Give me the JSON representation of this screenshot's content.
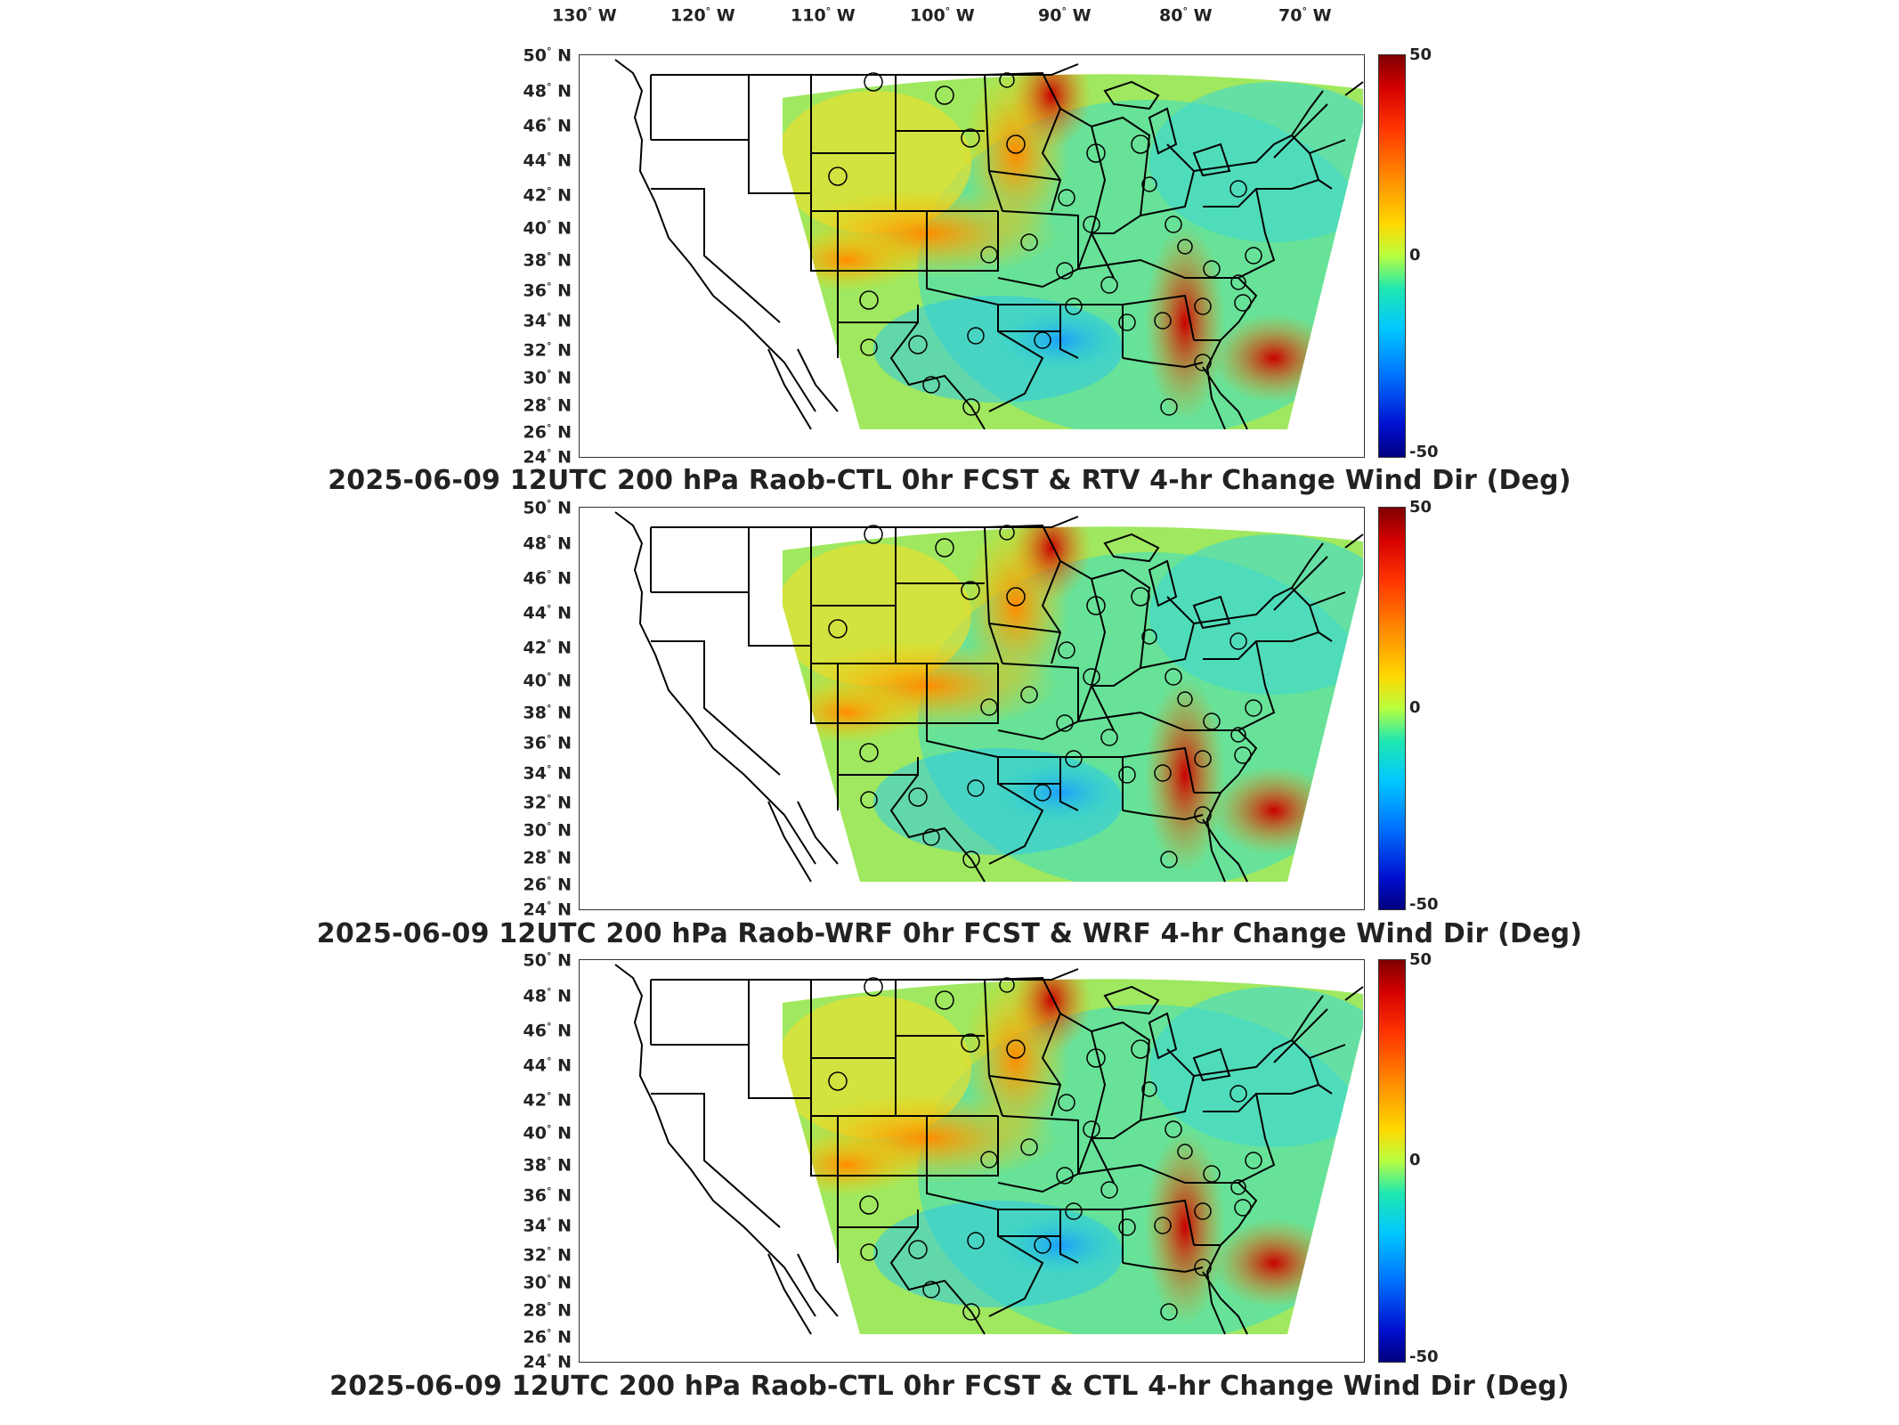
{
  "lon_labels": [
    "130",
    "120",
    "110",
    "100",
    "90",
    "80",
    "70"
  ],
  "lon_suffix": "W",
  "lat_labels": [
    "50",
    "48",
    "46",
    "44",
    "42",
    "40",
    "38",
    "36",
    "34",
    "32",
    "30",
    "28",
    "26",
    "24"
  ],
  "lat_suffix": "N",
  "degree_mark": "°",
  "colorbar": {
    "max_label": "50",
    "mid_label": "0",
    "min_label": "-50",
    "colors": [
      "#7f0000",
      "#ff3300",
      "#ff8800",
      "#ffd800",
      "#b8ff40",
      "#20e8b0",
      "#00c8ff",
      "#0070ff",
      "#00007f"
    ]
  },
  "panels": [
    {
      "title": "2025-06-09 12UTC 200 hPa Raob-CTL 0hr FCST & RTV 4-hr Change Wind Dir (Deg)"
    },
    {
      "title": "2025-06-09 12UTC 200 hPa Raob-WRF 0hr FCST & WRF 4-hr Change Wind Dir (Deg)"
    },
    {
      "title": "2025-06-09 12UTC 200 hPa Raob-CTL 0hr FCST & CTL 4-hr Change Wind Dir (Deg)"
    }
  ]
}
